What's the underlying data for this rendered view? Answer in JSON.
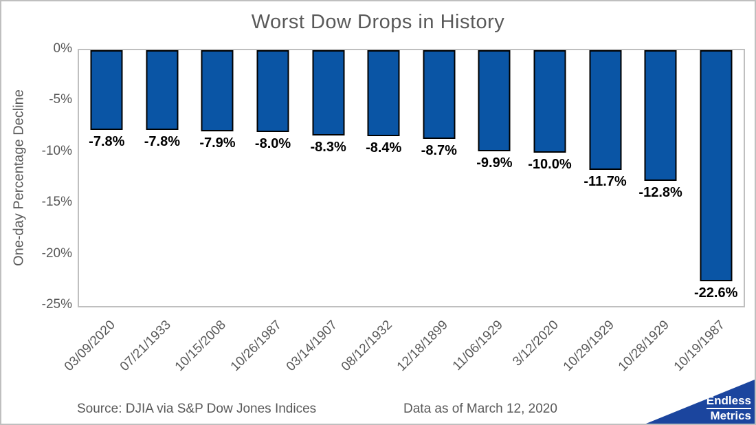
{
  "chart_data": {
    "type": "bar",
    "title": "Worst Dow Drops in History",
    "ylabel": "One-day Percentage Decline",
    "xlabel": "",
    "categories": [
      "03/09/2020",
      "07/21/1933",
      "10/15/2008",
      "10/26/1987",
      "03/14/1907",
      "08/12/1932",
      "12/18/1899",
      "11/06/1929",
      "3/12/2020",
      "10/29/1929",
      "10/28/1929",
      "10/19/1987"
    ],
    "values": [
      -7.8,
      -7.8,
      -7.9,
      -8.0,
      -8.3,
      -8.4,
      -8.7,
      -9.9,
      -10.0,
      -11.7,
      -12.8,
      -22.6
    ],
    "bar_labels": [
      "-7.8%",
      "-7.8%",
      "-7.9%",
      "-8.0%",
      "-8.3%",
      "-8.4%",
      "-8.7%",
      "-9.9%",
      "-10.0%",
      "-11.7%",
      "-12.8%",
      "-22.6%"
    ],
    "yticks": [
      {
        "label": "0%",
        "value": 0
      },
      {
        "label": "-5%",
        "value": -5
      },
      {
        "label": "-10%",
        "value": -10
      },
      {
        "label": "-15%",
        "value": -15
      },
      {
        "label": "-20%",
        "value": -20
      },
      {
        "label": "-25%",
        "value": -25
      }
    ],
    "ylim": [
      0,
      -25
    ],
    "grid": "off",
    "legend": "none",
    "bar_color": "#0A55A5",
    "bar_border_color": "#000000"
  },
  "footer": {
    "source": "Source: DJIA via S&P Dow Jones Indices",
    "data_as_of": "Data as of March 12, 2020"
  },
  "logo": {
    "line1": "Endless",
    "line2": "Metrics",
    "color": "#1B459E"
  }
}
